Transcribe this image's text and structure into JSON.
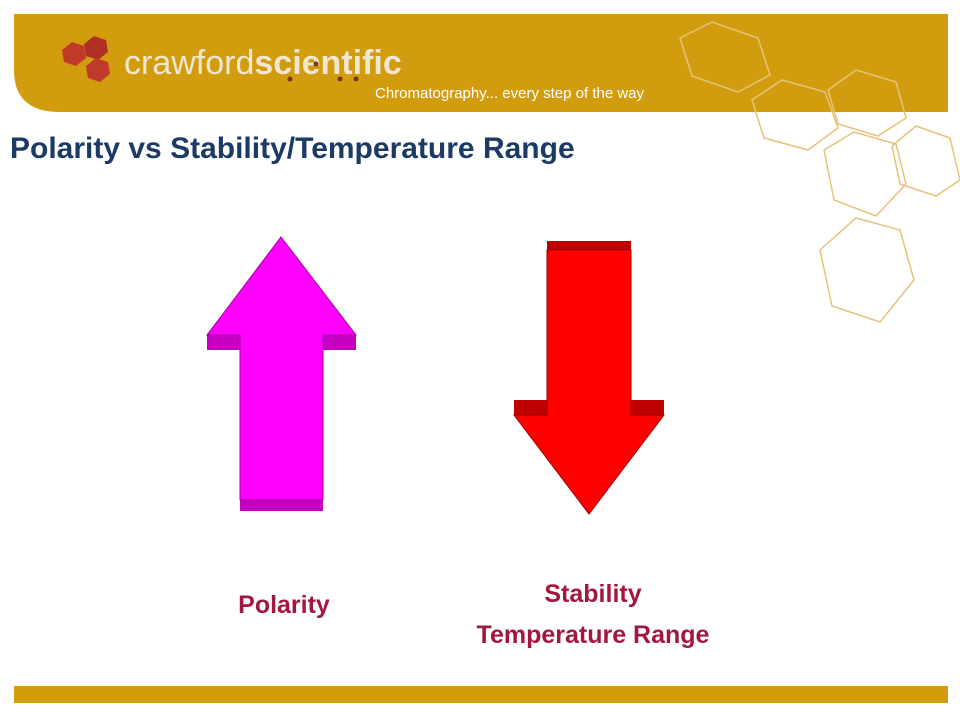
{
  "header": {
    "logo_word_1": "crawford",
    "logo_word_2": "scientific",
    "tagline": "Chromatography... every step of the way"
  },
  "title": "Polarity vs Stability/Temperature Range",
  "labels": [
    "Polarity",
    "Stability",
    "Temperature Range"
  ]
}
